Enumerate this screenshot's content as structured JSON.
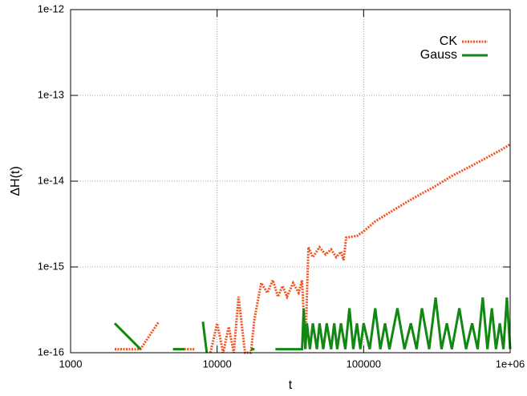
{
  "chart_data": {
    "type": "line",
    "xlabel": "t",
    "ylabel": "ΔH(t)",
    "xscale": "log",
    "yscale": "log",
    "grid": true,
    "legend": "top-right",
    "xlim": [
      1000,
      1000000
    ],
    "xticks": [
      1000,
      10000,
      100000,
      {
        "value": 1000000,
        "label": "1e+06"
      }
    ],
    "ylim": [
      1e-16,
      1e-12
    ],
    "yticks": [
      {
        "value": 1e-16,
        "label": "1e-16"
      },
      {
        "value": 1e-15,
        "label": "1e-15"
      },
      {
        "value": 1e-14,
        "label": "1e-14"
      },
      {
        "value": 1e-13,
        "label": "1e-13"
      },
      {
        "value": 1e-12,
        "label": "1e-12"
      }
    ],
    "series": [
      {
        "name": "CK",
        "color": "#f4511e",
        "dash": "dotted",
        "x": [
          2000,
          3000,
          4000,
          4500,
          5000,
          7000,
          7500,
          9000,
          10000,
          11000,
          12000,
          13000,
          14000,
          15500,
          17000,
          18000,
          20000,
          22000,
          24000,
          26000,
          28000,
          30000,
          33000,
          36000,
          38000,
          40000,
          42000,
          45000,
          50000,
          55000,
          60000,
          65000,
          70000,
          73000,
          76000,
          90000,
          100000,
          120000,
          150000,
          200000,
          250000,
          300000,
          400000,
          500000,
          600000,
          700000,
          800000,
          900000,
          1000000
        ],
        "values": [
          1.1e-16,
          1.1e-16,
          2.3e-16,
          null,
          1.1e-16,
          1.1e-16,
          null,
          1e-16,
          2.2e-16,
          1e-16,
          2e-16,
          1e-16,
          4.5e-16,
          1e-16,
          1e-16,
          2.5e-16,
          6.5e-16,
          5e-16,
          7e-16,
          4.5e-16,
          6e-16,
          4.5e-16,
          6.5e-16,
          5e-16,
          7e-16,
          1.1e-16,
          1.7e-15,
          1.3e-15,
          1.7e-15,
          1.4e-15,
          1.6e-15,
          1.3e-15,
          1.5e-15,
          1.2e-15,
          2.2e-15,
          2.3e-15,
          2.6e-15,
          3.4e-15,
          4.3e-15,
          5.8e-15,
          7.2e-15,
          8.5e-15,
          1.15e-14,
          1.4e-14,
          1.65e-14,
          1.9e-14,
          2.15e-14,
          2.4e-14,
          2.7e-14
        ]
      },
      {
        "name": "Gauss",
        "color": "#118811",
        "dash": "solid",
        "x": [
          2000,
          3000,
          4000,
          5000,
          6000,
          7000,
          8000,
          8500,
          9000,
          14000,
          16000,
          17000,
          18000,
          20000,
          25000,
          30000,
          35000,
          38000,
          39000,
          40000,
          41000,
          43000,
          45000,
          48000,
          50000,
          53000,
          56000,
          60000,
          63000,
          66000,
          70000,
          75000,
          80000,
          85000,
          90000,
          95000,
          100000,
          110000,
          120000,
          130000,
          140000,
          150000,
          170000,
          190000,
          210000,
          230000,
          250000,
          280000,
          310000,
          340000,
          370000,
          400000,
          450000,
          500000,
          550000,
          600000,
          650000,
          700000,
          750000,
          800000,
          850000,
          900000,
          950000,
          1000000
        ],
        "values": [
          2.2e-16,
          1.1e-16,
          null,
          1.1e-16,
          1.1e-16,
          null,
          2.3e-16,
          1e-16,
          null,
          1.1e-16,
          null,
          1.1e-16,
          1.1e-16,
          null,
          1.1e-16,
          1.1e-16,
          1.1e-16,
          1.1e-16,
          3.3e-16,
          1.1e-16,
          2.2e-16,
          1.1e-16,
          2.2e-16,
          1.1e-16,
          2.2e-16,
          1.1e-16,
          2.2e-16,
          1.1e-16,
          2.2e-16,
          1.1e-16,
          2.2e-16,
          1.1e-16,
          3.3e-16,
          1.1e-16,
          2.2e-16,
          1.1e-16,
          2.2e-16,
          1.1e-16,
          3.3e-16,
          1.1e-16,
          2.2e-16,
          1.1e-16,
          3.3e-16,
          1.1e-16,
          2.2e-16,
          1.1e-16,
          3.3e-16,
          1.1e-16,
          4.4e-16,
          1.1e-16,
          2.2e-16,
          1.1e-16,
          3.3e-16,
          1.1e-16,
          2.2e-16,
          1.1e-16,
          4.4e-16,
          1.1e-16,
          3.3e-16,
          1.1e-16,
          2.2e-16,
          1.1e-16,
          4.4e-16,
          1.1e-16
        ]
      }
    ]
  }
}
